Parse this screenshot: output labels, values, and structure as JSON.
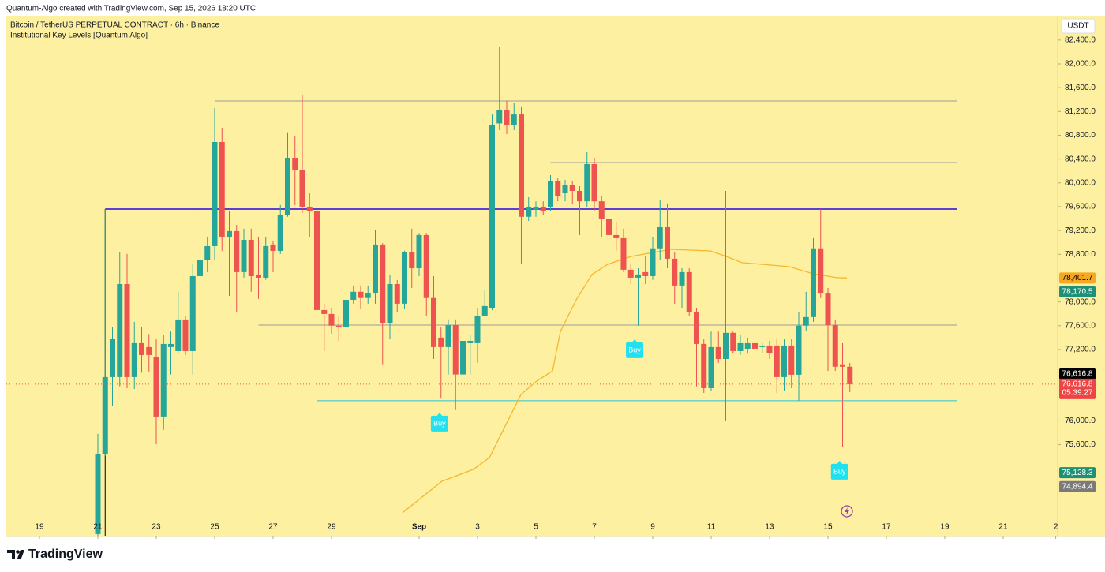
{
  "header": {
    "attribution": "Quantum-Algo created with TradingView.com, Sep 15, 2026 18:20 UTC",
    "brand": "TradingView"
  },
  "chart_data": {
    "type": "candlestick",
    "title": "Bitcoin / TetherUS PERPETUAL CONTRACT · 6h · Binance",
    "subtitle": "Institutional Key Levels [Quantum Algo]",
    "currency": "USDT",
    "up_color": "#26a69a",
    "down_color": "#ef5350",
    "xlim": [
      -1.135,
      34.865
    ],
    "ylim": [
      74056,
      82809
    ],
    "xticks": [
      {
        "value": 0,
        "label": "19"
      },
      {
        "value": 2,
        "label": "21"
      },
      {
        "value": 4,
        "label": "23"
      },
      {
        "value": 6,
        "label": "25"
      },
      {
        "value": 8,
        "label": "27"
      },
      {
        "value": 10,
        "label": "29"
      },
      {
        "value": 13,
        "label": "Sep"
      },
      {
        "value": 15,
        "label": "3"
      },
      {
        "value": 17,
        "label": "5"
      },
      {
        "value": 19,
        "label": "7"
      },
      {
        "value": 21,
        "label": "9"
      },
      {
        "value": 23,
        "label": "11"
      },
      {
        "value": 25,
        "label": "13"
      },
      {
        "value": 27,
        "label": "15"
      },
      {
        "value": 29,
        "label": "17"
      },
      {
        "value": 31,
        "label": "19"
      },
      {
        "value": 33,
        "label": "21"
      },
      {
        "value": 34.8,
        "label": "2"
      }
    ],
    "yticks": [
      {
        "value": 82400,
        "label": "82,400.0"
      },
      {
        "value": 82000,
        "label": "82,000.0"
      },
      {
        "value": 81600,
        "label": "81,600.0"
      },
      {
        "value": 81200,
        "label": "81,200.0"
      },
      {
        "value": 80800,
        "label": "80,800.0"
      },
      {
        "value": 80400,
        "label": "80,400.0"
      },
      {
        "value": 80000,
        "label": "80,000.0"
      },
      {
        "value": 79600,
        "label": "79,600.0"
      },
      {
        "value": 79200,
        "label": "79,200.0"
      },
      {
        "value": 78800,
        "label": "78,800.0"
      },
      {
        "value": 78000,
        "label": "78,000.0"
      },
      {
        "value": 77600,
        "label": "77,600.0"
      },
      {
        "value": 77200,
        "label": "77,200.0"
      },
      {
        "value": 76000,
        "label": "76,000.0"
      },
      {
        "value": 75600,
        "label": "75,600.0"
      }
    ],
    "x": [
      2,
      2.25,
      2.5,
      2.75,
      3,
      3.25,
      3.5,
      3.75,
      4,
      4.25,
      4.5,
      4.75,
      5,
      5.25,
      5.5,
      5.75,
      6,
      6.25,
      6.5,
      6.75,
      7,
      7.25,
      7.5,
      7.75,
      8,
      8.25,
      8.5,
      8.75,
      9,
      9.25,
      9.5,
      9.75,
      10,
      10.25,
      10.5,
      10.75,
      11,
      11.25,
      11.5,
      11.75,
      12,
      12.25,
      12.5,
      12.75,
      13,
      13.25,
      13.5,
      13.75,
      14,
      14.25,
      14.5,
      14.75,
      15,
      15.25,
      15.5,
      15.75,
      16,
      16.25,
      16.5,
      16.75,
      17,
      17.25,
      17.5,
      17.75,
      18,
      18.25,
      18.5,
      18.75,
      19,
      19.25,
      19.5,
      19.75,
      20,
      20.25,
      20.5,
      20.75,
      21,
      21.25,
      21.5,
      21.75,
      22,
      22.25,
      22.5,
      22.75,
      23,
      23.25,
      23.5,
      23.75,
      24,
      24.25,
      24.5,
      24.75,
      25,
      25.25,
      25.5,
      25.75,
      26,
      26.25,
      26.5,
      26.75,
      27,
      27.25,
      27.5,
      27.75
    ],
    "open": [
      74097,
      75436,
      76736,
      76736,
      78300,
      76736,
      77306,
      77240,
      77080,
      76073,
      77240,
      77173,
      77704,
      77173,
      78433,
      78700,
      78937,
      80687,
      79096,
      79190,
      78500,
      79043,
      78460,
      78407,
      78964,
      78857,
      79467,
      80422,
      80223,
      79600,
      79520,
      77863,
      77797,
      77600,
      77570,
      78035,
      78170,
      78065,
      78140,
      78964,
      77640,
      78300,
      77970,
      78830,
      78565,
      79123,
      78065,
      77400,
      77240,
      77610,
      76780,
      77306,
      77306,
      77770,
      77900,
      81000,
      81220,
      80979,
      81150,
      79430,
      79547,
      79600,
      79600,
      80024,
      79825,
      79958,
      79865,
      79690,
      80316,
      79690,
      79388,
      79123,
      79070,
      78540,
      78407,
      78500,
      78433,
      78900,
      79255,
      78725,
      78275,
      78500,
      77836,
      77293,
      76550,
      77240,
      77040,
      77480,
      77173,
      77213,
      77306,
      77240,
      77266,
      77266,
      76736,
      77266,
      76776,
      77600,
      77745,
      78900,
      78140,
      77610,
      76950,
      76910
    ],
    "high": [
      75781,
      79560,
      77570,
      78830,
      78805,
      77664,
      77570,
      77460,
      77370,
      77440,
      77500,
      78170,
      77770,
      78630,
      79920,
      79096,
      81257,
      80926,
      79520,
      79295,
      79230,
      79230,
      79096,
      79096,
      79030,
      79630,
      80850,
      80793,
      81480,
      79825,
      79890,
      77970,
      77900,
      77770,
      78140,
      78275,
      78275,
      78275,
      79205,
      78990,
      78460,
      78367,
      78860,
      79230,
      79160,
      79160,
      78433,
      77570,
      77705,
      77705,
      77640,
      77440,
      77900,
      78195,
      81150,
      82280,
      81380,
      81350,
      81285,
      79760,
      79690,
      79690,
      80130,
      80090,
      80050,
      80024,
      79945,
      80515,
      80422,
      79785,
      79627,
      79335,
      79230,
      78630,
      78565,
      78765,
      79096,
      79720,
      79655,
      78830,
      78565,
      78565,
      77900,
      77370,
      77500,
      77500,
      79865,
      77500,
      77440,
      77400,
      77480,
      77306,
      77345,
      77370,
      77370,
      77370,
      77836,
      78170,
      79070,
      79560,
      78235,
      77705,
      77306,
      76975
    ],
    "low": [
      74057,
      75410,
      76245,
      76580,
      76550,
      76537,
      76810,
      76830,
      75610,
      75850,
      76780,
      77130,
      77107,
      76780,
      78195,
      78500,
      78700,
      78858,
      78100,
      77836,
      78407,
      78170,
      78050,
      78370,
      78500,
      78805,
      79430,
      79627,
      79495,
      79096,
      76870,
      77173,
      77465,
      77345,
      77440,
      77970,
      77875,
      77970,
      77970,
      76950,
      77370,
      77836,
      77875,
      78235,
      78433,
      77770,
      77040,
      76375,
      76780,
      76180,
      76600,
      76780,
      76975,
      77770,
      77860,
      80886,
      80820,
      80886,
      78630,
      79360,
      79430,
      79467,
      79520,
      79690,
      79690,
      79650,
      79123,
      79600,
      79520,
      79096,
      78830,
      78857,
      78500,
      78300,
      77600,
      78300,
      78370,
      78700,
      78565,
      77970,
      77900,
      77770,
      76580,
      76470,
      76510,
      76975,
      76007,
      77130,
      77107,
      77130,
      77130,
      77146,
      77040,
      76470,
      76510,
      76550,
      76339,
      77505,
      77665,
      78065,
      76840,
      76840,
      75556,
      76484
    ],
    "close": [
      75436,
      76736,
      77372,
      78300,
      76736,
      77306,
      77107,
      77107,
      76073,
      77293,
      77293,
      77704,
      77173,
      78433,
      78700,
      78937,
      80687,
      79096,
      79190,
      78500,
      79043,
      78433,
      78407,
      78937,
      78857,
      79467,
      80422,
      80223,
      79600,
      79520,
      77863,
      77797,
      77600,
      77570,
      78035,
      78170,
      78065,
      78140,
      78964,
      77640,
      78300,
      77970,
      78830,
      78565,
      79123,
      78065,
      77240,
      77240,
      77610,
      76780,
      77345,
      77345,
      77770,
      77930,
      80979,
      81220,
      80979,
      81150,
      79430,
      79600,
      79600,
      79520,
      80024,
      79785,
      79958,
      79865,
      79690,
      80316,
      79690,
      79388,
      79123,
      79070,
      78540,
      78407,
      78460,
      78433,
      78900,
      79255,
      78725,
      78275,
      78500,
      77836,
      77293,
      76550,
      77240,
      77040,
      77480,
      77173,
      77306,
      77306,
      77213,
      77266,
      77133,
      76736,
      77266,
      76776,
      77600,
      77745,
      78900,
      78140,
      77610,
      76910,
      76910,
      76616.8
    ],
    "levels": [
      {
        "value": 81377,
        "color": "#9a9a9a",
        "x_start": 6
      },
      {
        "value": 80343,
        "color": "#9a9a9a",
        "x_start": 17.5
      },
      {
        "value": 79560,
        "color": "#5b3fd6",
        "x_start": 2.25
      },
      {
        "value": 77611,
        "color": "#9a9a9a",
        "x_start": 7.5
      },
      {
        "value": 76338,
        "color": "#26c6da",
        "x_start": 9.5
      }
    ],
    "ma": {
      "color": "#f5b731",
      "x": [
        12.43,
        13.78,
        14.86,
        15.41,
        15.95,
        16.49,
        17.03,
        17.57,
        17.84,
        18.38,
        18.92,
        19.46,
        20.27,
        21.62,
        22.97,
        23.51,
        24.05,
        25.68,
        26.49,
        27.3,
        27.65
      ],
      "values": [
        74455,
        74985,
        75184,
        75383,
        75914,
        76444,
        76670,
        76840,
        77505,
        78035,
        78460,
        78632,
        78765,
        78884,
        78857,
        78765,
        78659,
        78592,
        78472,
        78407,
        78401.7
      ]
    },
    "signals": [
      {
        "x": 13.7,
        "y": 75954,
        "label": "Buy"
      },
      {
        "x": 20.38,
        "y": 77187,
        "label": "Buy"
      },
      {
        "x": 27.4,
        "y": 75145,
        "label": "Buy"
      }
    ],
    "price_labels": [
      {
        "value": 78401.7,
        "label": "78,401.7",
        "color": "#f7a823",
        "text_color": "#000000"
      },
      {
        "value": 78170.5,
        "label": "78,170.5",
        "color": "#1f8f75",
        "text_color": "#ffffff"
      },
      {
        "value": 76616.8,
        "label": "76,616.8",
        "color": "#000000",
        "text_color": "#ffffff"
      },
      {
        "value": 76616.8,
        "label": "76,616.8",
        "color": "#ef4444",
        "text_color": "#ffffff",
        "countdown": "05:39:27"
      },
      {
        "value": 75128.3,
        "label": "75,128.3",
        "color": "#1f8f75",
        "text_color": "#ffffff"
      },
      {
        "value": 74894.4,
        "label": "74,894.4",
        "color": "#7a7a7a",
        "text_color": "#ffffff"
      }
    ]
  }
}
